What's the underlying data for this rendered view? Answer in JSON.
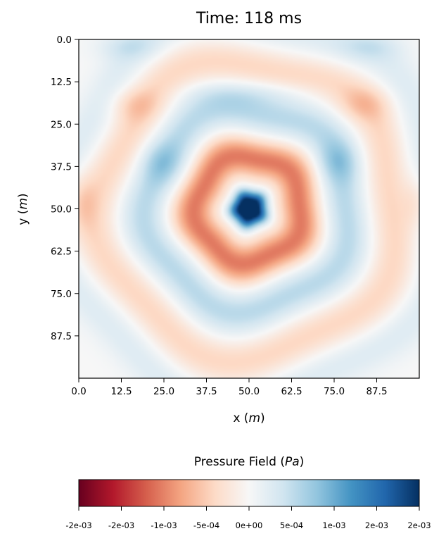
{
  "chart_data": {
    "type": "heatmap",
    "title": "Time:  118 ms",
    "xlabel": {
      "text": "x (",
      "math": "m",
      "close": ")"
    },
    "ylabel": {
      "text": "y (",
      "math": "m",
      "close": ")"
    },
    "xlim": [
      0,
      100
    ],
    "ylim": [
      100,
      0
    ],
    "y_inverted": true,
    "xticks": [
      "0.0",
      "12.5",
      "25.0",
      "37.5",
      "50.0",
      "62.5",
      "75.0",
      "87.5"
    ],
    "yticks": [
      "0.0",
      "12.5",
      "25.0",
      "37.5",
      "50.0",
      "62.5",
      "75.0",
      "87.5"
    ],
    "xtick_values": [
      0,
      12.5,
      25,
      37.5,
      50,
      62.5,
      75,
      87.5
    ],
    "ytick_values": [
      0,
      12.5,
      25,
      37.5,
      50,
      62.5,
      75,
      87.5
    ],
    "colormap": "RdBu",
    "colorbar": {
      "title": {
        "text": "Pressure Field (",
        "math": "Pa",
        "close": ")"
      },
      "orientation": "horizontal",
      "vmin": -0.002,
      "vmax": 0.002,
      "ticks": [
        "-2e-03",
        "-2e-03",
        "-1e-03",
        "-5e-04",
        "0e+00",
        "5e-04",
        "1e-03",
        "2e-03",
        "2e-03"
      ]
    },
    "source": {
      "x": 50,
      "y": 50
    },
    "field_description": "concentric pressure wave from point source at (50,50): strong negative core, positive ring, alternating bands with reflections from boundaries"
  },
  "colors": {
    "rdbu_stops": [
      "#67001f",
      "#b2182b",
      "#d6604d",
      "#f4a582",
      "#fddbc7",
      "#f7f7f7",
      "#d1e5f0",
      "#92c5de",
      "#4393c3",
      "#2166ac",
      "#053061"
    ]
  }
}
